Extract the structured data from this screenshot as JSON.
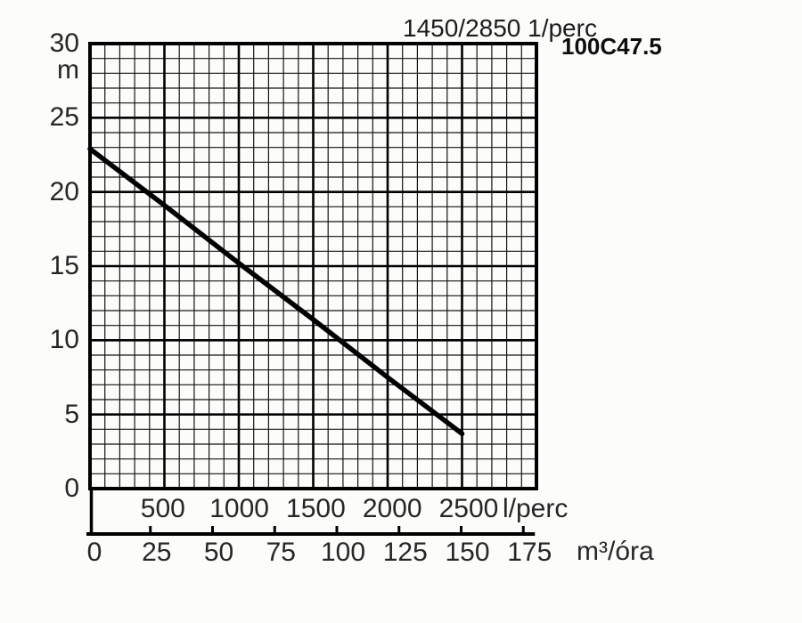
{
  "title": "1450/2850 1/perc",
  "model": "100C47.5",
  "chart_data": {
    "type": "line",
    "title": "1450/2850 1/perc",
    "model_annotation": "100C47.5",
    "grid": true,
    "y_axis": {
      "unit": "m",
      "min": 0,
      "max": 30,
      "major_step": 5,
      "minor_step": 1,
      "ticks": [
        0,
        5,
        10,
        15,
        20,
        25,
        30
      ]
    },
    "x_axis_lperc": {
      "unit": "l/perc",
      "min": 0,
      "max": 3000,
      "major_step": 500,
      "minor_step": 100,
      "tick_labels": [
        500,
        1000,
        1500,
        2000,
        2500
      ]
    },
    "x_axis_m3h": {
      "unit": "m³/óra",
      "min": 0,
      "max": 175,
      "step": 25,
      "ticks": [
        0,
        25,
        50,
        75,
        100,
        125,
        150,
        175
      ]
    },
    "series": [
      {
        "name": "100C47.5 head curve",
        "points_lperc_m": [
          [
            0,
            22.9
          ],
          [
            500,
            19.1
          ],
          [
            1000,
            15.2
          ],
          [
            1500,
            11.4
          ],
          [
            2000,
            7.5
          ],
          [
            2500,
            3.7
          ]
        ]
      }
    ]
  },
  "colors": {
    "background": "#fcfcfa",
    "border": "#000000",
    "grid_major": "#000000",
    "grid_minor": "#141414",
    "curve": "#000000",
    "text": "#262626"
  }
}
